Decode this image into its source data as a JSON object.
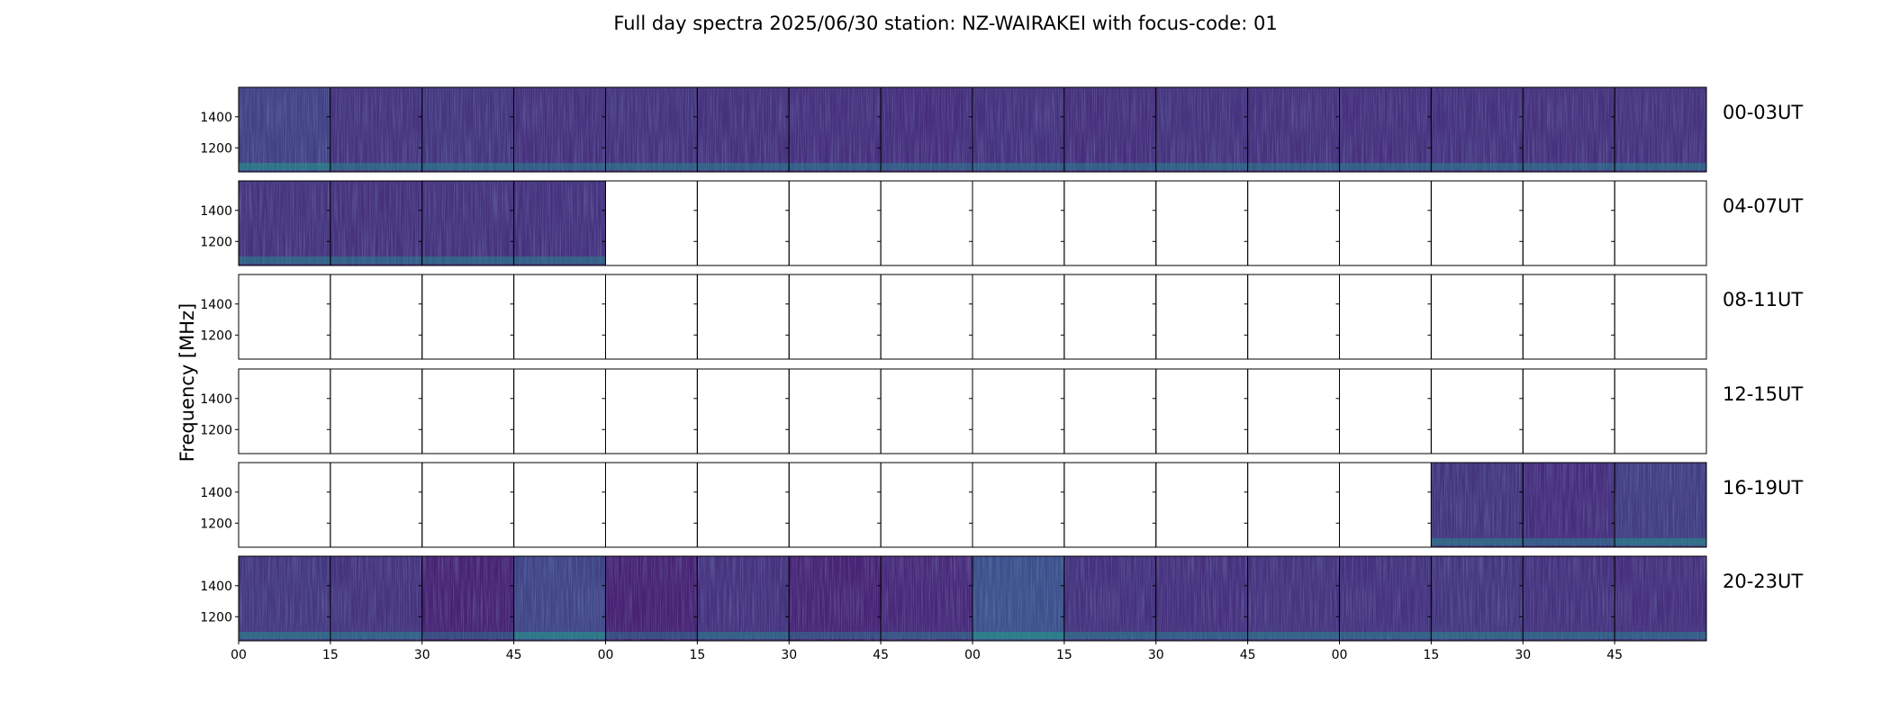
{
  "chart_data": {
    "type": "heatmap",
    "title": "Full day spectra 2025/06/30 station: NZ-WAIRAKEI with focus-code: 01",
    "ylabel": "Frequency [MHz]",
    "xlabel": "",
    "yticks": [
      1200,
      1400
    ],
    "ylim": [
      1045,
      1590
    ],
    "x_tick_labels": [
      "00",
      "15",
      "30",
      "45",
      "00",
      "15",
      "30",
      "45",
      "00",
      "15",
      "30",
      "45",
      "00",
      "15",
      "30",
      "45"
    ],
    "panels_per_row": 16,
    "panel_minutes": 15,
    "colormap": "viridis",
    "rows": [
      {
        "label": "00-03UT",
        "data": [
          1,
          1,
          1,
          1,
          1,
          1,
          1,
          1,
          1,
          1,
          1,
          1,
          1,
          1,
          1,
          1
        ],
        "intensity": [
          0.62,
          0.48,
          0.5,
          0.45,
          0.48,
          0.45,
          0.44,
          0.42,
          0.46,
          0.43,
          0.47,
          0.45,
          0.44,
          0.46,
          0.45,
          0.47
        ]
      },
      {
        "label": "04-07UT",
        "data": [
          1,
          1,
          1,
          1,
          0,
          0,
          0,
          0,
          0,
          0,
          0,
          0,
          0,
          0,
          0,
          0
        ],
        "intensity": [
          0.48,
          0.45,
          0.47,
          0.46,
          0,
          0,
          0,
          0,
          0,
          0,
          0,
          0,
          0,
          0,
          0,
          0
        ]
      },
      {
        "label": "08-11UT",
        "data": [
          0,
          0,
          0,
          0,
          0,
          0,
          0,
          0,
          0,
          0,
          0,
          0,
          0,
          0,
          0,
          0
        ],
        "intensity": [
          0,
          0,
          0,
          0,
          0,
          0,
          0,
          0,
          0,
          0,
          0,
          0,
          0,
          0,
          0,
          0
        ]
      },
      {
        "label": "12-15UT",
        "data": [
          0,
          0,
          0,
          0,
          0,
          0,
          0,
          0,
          0,
          0,
          0,
          0,
          0,
          0,
          0,
          0
        ],
        "intensity": [
          0,
          0,
          0,
          0,
          0,
          0,
          0,
          0,
          0,
          0,
          0,
          0,
          0,
          0,
          0,
          0
        ]
      },
      {
        "label": "16-19UT",
        "data": [
          0,
          0,
          0,
          0,
          0,
          0,
          0,
          0,
          0,
          0,
          0,
          0,
          0,
          1,
          1,
          1
        ],
        "intensity": [
          0,
          0,
          0,
          0,
          0,
          0,
          0,
          0,
          0,
          0,
          0,
          0,
          0,
          0.5,
          0.42,
          0.58
        ]
      },
      {
        "label": "20-23UT",
        "data": [
          1,
          1,
          1,
          1,
          1,
          1,
          1,
          1,
          1,
          1,
          1,
          1,
          1,
          1,
          1,
          1
        ],
        "intensity": [
          0.52,
          0.48,
          0.3,
          0.66,
          0.3,
          0.46,
          0.32,
          0.36,
          0.8,
          0.46,
          0.44,
          0.48,
          0.46,
          0.5,
          0.46,
          0.44
        ]
      }
    ]
  }
}
